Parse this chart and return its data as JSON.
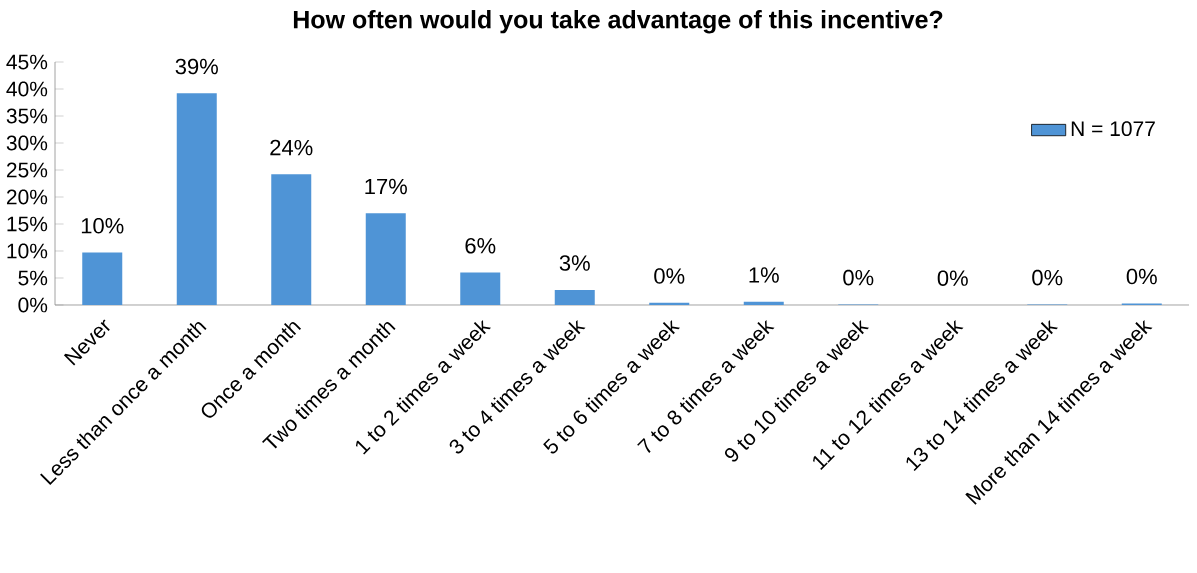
{
  "chart_data": {
    "type": "bar",
    "title": "How often would you take advantage of this incentive?",
    "categories": [
      "Never",
      "Less than once a month",
      "Once a month",
      "Two times a month",
      "1 to 2 times a week",
      "3 to 4 times a week",
      "5 to 6 times a week",
      "7 to 8 times a week",
      "9 to 10 times a week",
      "11 to 12 times a week",
      "13 to 14 times a week",
      "More than 14 times a week"
    ],
    "series": [
      {
        "name": "N = 1077",
        "color": "#4f94d6",
        "values": [
          9.7,
          39.2,
          24.2,
          17,
          6,
          2.8,
          0.4,
          0.6,
          0.1,
          0,
          0.1,
          0.3
        ],
        "value_labels": [
          "10%",
          "39%",
          "24%",
          "17%",
          "6%",
          "3%",
          "0%",
          "1%",
          "0%",
          "0%",
          "0%",
          "0%"
        ]
      }
    ],
    "ylim": [
      0,
      45
    ],
    "yticks": [
      {
        "value": 0,
        "label": "0%"
      },
      {
        "value": 5,
        "label": "5%"
      },
      {
        "value": 10,
        "label": "10%"
      },
      {
        "value": 15,
        "label": "15%"
      },
      {
        "value": 20,
        "label": "20%"
      },
      {
        "value": 25,
        "label": "25%"
      },
      {
        "value": 30,
        "label": "30%"
      },
      {
        "value": 35,
        "label": "35%"
      },
      {
        "value": 40,
        "label": "40%"
      },
      {
        "value": 45,
        "label": "45%"
      }
    ],
    "grid": false,
    "legend": "right"
  }
}
